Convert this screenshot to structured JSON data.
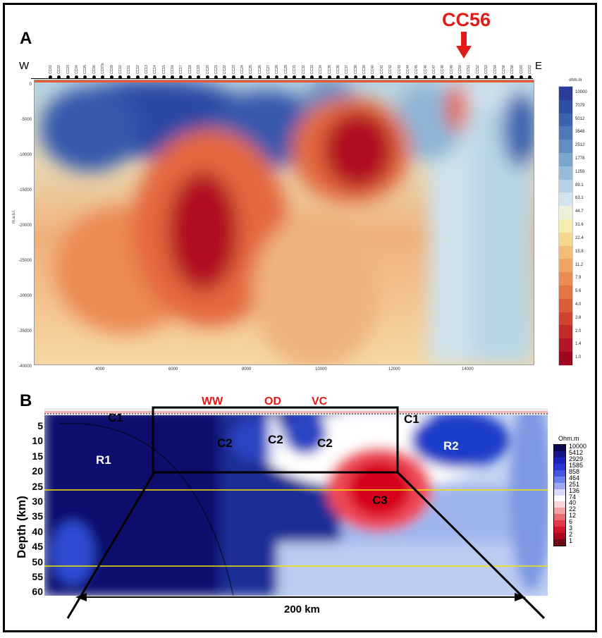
{
  "panel_a": {
    "label": "A",
    "west": "W",
    "east": "E",
    "callout": "CC56",
    "units": "ohm.m",
    "axis_side": "m.a.s.l.",
    "x_ticks": [
      "4000",
      "6000",
      "8000",
      "10000",
      "12000",
      "14000"
    ],
    "y_ticks": [
      "0",
      "-5000",
      "-10000",
      "-15000",
      "-20000",
      "-25000",
      "-30000",
      "-35000",
      "-40000"
    ],
    "legend": [
      "10000",
      "7079",
      "5012",
      "3548",
      "2512",
      "1778",
      "1259",
      "89.1",
      "63.1",
      "44.7",
      "31.6",
      "22.4",
      "15.8",
      "11.2",
      "7.9",
      "5.6",
      "4.0",
      "2.8",
      "2.0",
      "1.4",
      "1.0"
    ],
    "stations": [
      "CC01",
      "CC02",
      "CC03",
      "CC04",
      "CC05",
      "CC06",
      "CC07b",
      "CC09",
      "CC10",
      "CC11",
      "CC12",
      "CC13",
      "CC14",
      "CC15",
      "CC16",
      "CC17",
      "CC18",
      "CC19",
      "CC20",
      "CC21",
      "CC22",
      "CC23",
      "CC24",
      "CC25",
      "CC26",
      "CC27",
      "CC28",
      "CC29",
      "CC31",
      "CC32",
      "CC33",
      "CC34",
      "CC35",
      "CC36",
      "CC37",
      "CC38",
      "CC39",
      "CC40",
      "CC41",
      "CC42",
      "CC43",
      "CC44",
      "CC45",
      "CC46",
      "CC47",
      "CC48",
      "CC49",
      "CC50",
      "CC51",
      "CC52",
      "CC53",
      "CC54",
      "CC56",
      "CC58",
      "CC60",
      "CC62"
    ]
  },
  "panel_b": {
    "label": "B",
    "units": "Ohm.m",
    "depth_label": "Depth (km)",
    "depth_ticks": [
      "5",
      "10",
      "15",
      "20",
      "25",
      "30",
      "35",
      "40",
      "45",
      "50",
      "55",
      "60"
    ],
    "legend": [
      "10000",
      "5412",
      "2929",
      "1585",
      "858",
      "464",
      "251",
      "136",
      "74",
      "40",
      "22",
      "12",
      "6",
      "3",
      "2",
      "1"
    ],
    "top_labels": [
      "WW",
      "OD",
      "VC"
    ],
    "regions": {
      "c1_left": "C1",
      "c1_right": "C1",
      "c2_a": "C2",
      "c2_b": "C2",
      "c2_c": "C2",
      "r1": "R1",
      "r2": "R2",
      "c3": "C3"
    },
    "scale": "200 km"
  },
  "colors": {
    "callout": "#e31b17",
    "conductor": "#c80016",
    "resistor": "#1a2f96",
    "guide_line": "#f3e400"
  }
}
